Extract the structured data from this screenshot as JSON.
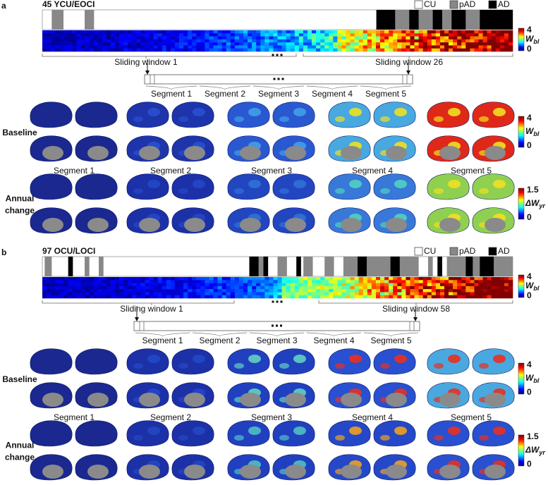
{
  "panels": [
    {
      "label": "a",
      "title": "45 YCU/EOCI",
      "legend": [
        "CU",
        "pAD",
        "AD"
      ],
      "heatmap_colorbar": {
        "max": 4,
        "min": 0,
        "symbol": "W",
        "subscript": "bl"
      },
      "windows": [
        "Sliding window 1",
        "Sliding window 26"
      ],
      "segments": [
        "Segment 1",
        "Segment 2",
        "Segment 3",
        "Segment 4",
        "Segment 5"
      ],
      "rows": [
        {
          "label_lines": [
            "Baseline"
          ],
          "colorbar": {
            "max": 4,
            "min": 0,
            "symbol": "W",
            "subscript": "bl"
          }
        },
        {
          "label_lines": [
            "Annual",
            "change"
          ],
          "colorbar": {
            "max": 1.5,
            "min": 0,
            "symbol": "ΔW",
            "subscript": "yr"
          }
        }
      ]
    },
    {
      "label": "b",
      "title": "97 OCU/LOCI",
      "legend": [
        "CU",
        "pAD",
        "AD"
      ],
      "heatmap_colorbar": {
        "max": 4,
        "min": 0,
        "symbol": "W",
        "subscript": "bl"
      },
      "windows": [
        "Sliding window 1",
        "Sliding window 58"
      ],
      "segments": [
        "Segment 1",
        "Segment 2",
        "Segment 3",
        "Segment 4",
        "Segment 5"
      ],
      "rows": [
        {
          "label_lines": [
            "Baseline"
          ],
          "colorbar": {
            "max": 4,
            "min": 0,
            "symbol": "W",
            "subscript": "bl"
          }
        },
        {
          "label_lines": [
            "Annual",
            "change"
          ],
          "colorbar": {
            "max": 1.5,
            "min": 0,
            "symbol": "ΔW",
            "subscript": "yr"
          }
        }
      ]
    }
  ]
}
